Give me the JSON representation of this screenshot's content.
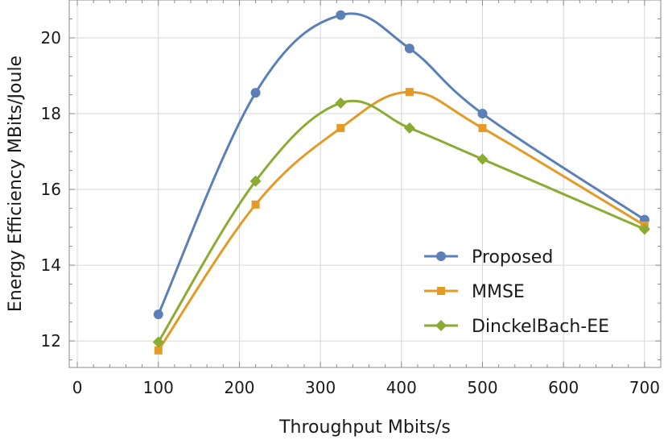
{
  "chart_data": {
    "type": "line",
    "title": "",
    "xlabel": "Throughput Mbits/s",
    "ylabel": "Energy Efficiency MBits/Joule",
    "xlim": [
      -10,
      720
    ],
    "ylim": [
      11.3,
      21.0
    ],
    "x_ticks": [
      0,
      100,
      200,
      300,
      400,
      500,
      600,
      700
    ],
    "y_ticks": [
      12,
      14,
      16,
      18,
      20
    ],
    "grid": true,
    "legend_position": "bottom-right",
    "series": [
      {
        "name": "Proposed",
        "color": "#5b7fb7",
        "marker": "circle",
        "x": [
          100,
          220,
          325,
          410,
          500,
          700
        ],
        "y": [
          12.7,
          18.55,
          20.6,
          19.72,
          18.0,
          15.2
        ]
      },
      {
        "name": "MMSE",
        "color": "#e39b26",
        "marker": "square",
        "x": [
          100,
          220,
          325,
          410,
          500,
          700
        ],
        "y": [
          11.75,
          15.6,
          17.62,
          18.57,
          17.62,
          15.05
        ]
      },
      {
        "name": "DinckelBach-EE",
        "color": "#8bab33",
        "marker": "diamond",
        "x": [
          100,
          220,
          325,
          410,
          500,
          700
        ],
        "y": [
          11.97,
          16.22,
          18.28,
          17.62,
          16.8,
          14.95
        ]
      }
    ]
  }
}
